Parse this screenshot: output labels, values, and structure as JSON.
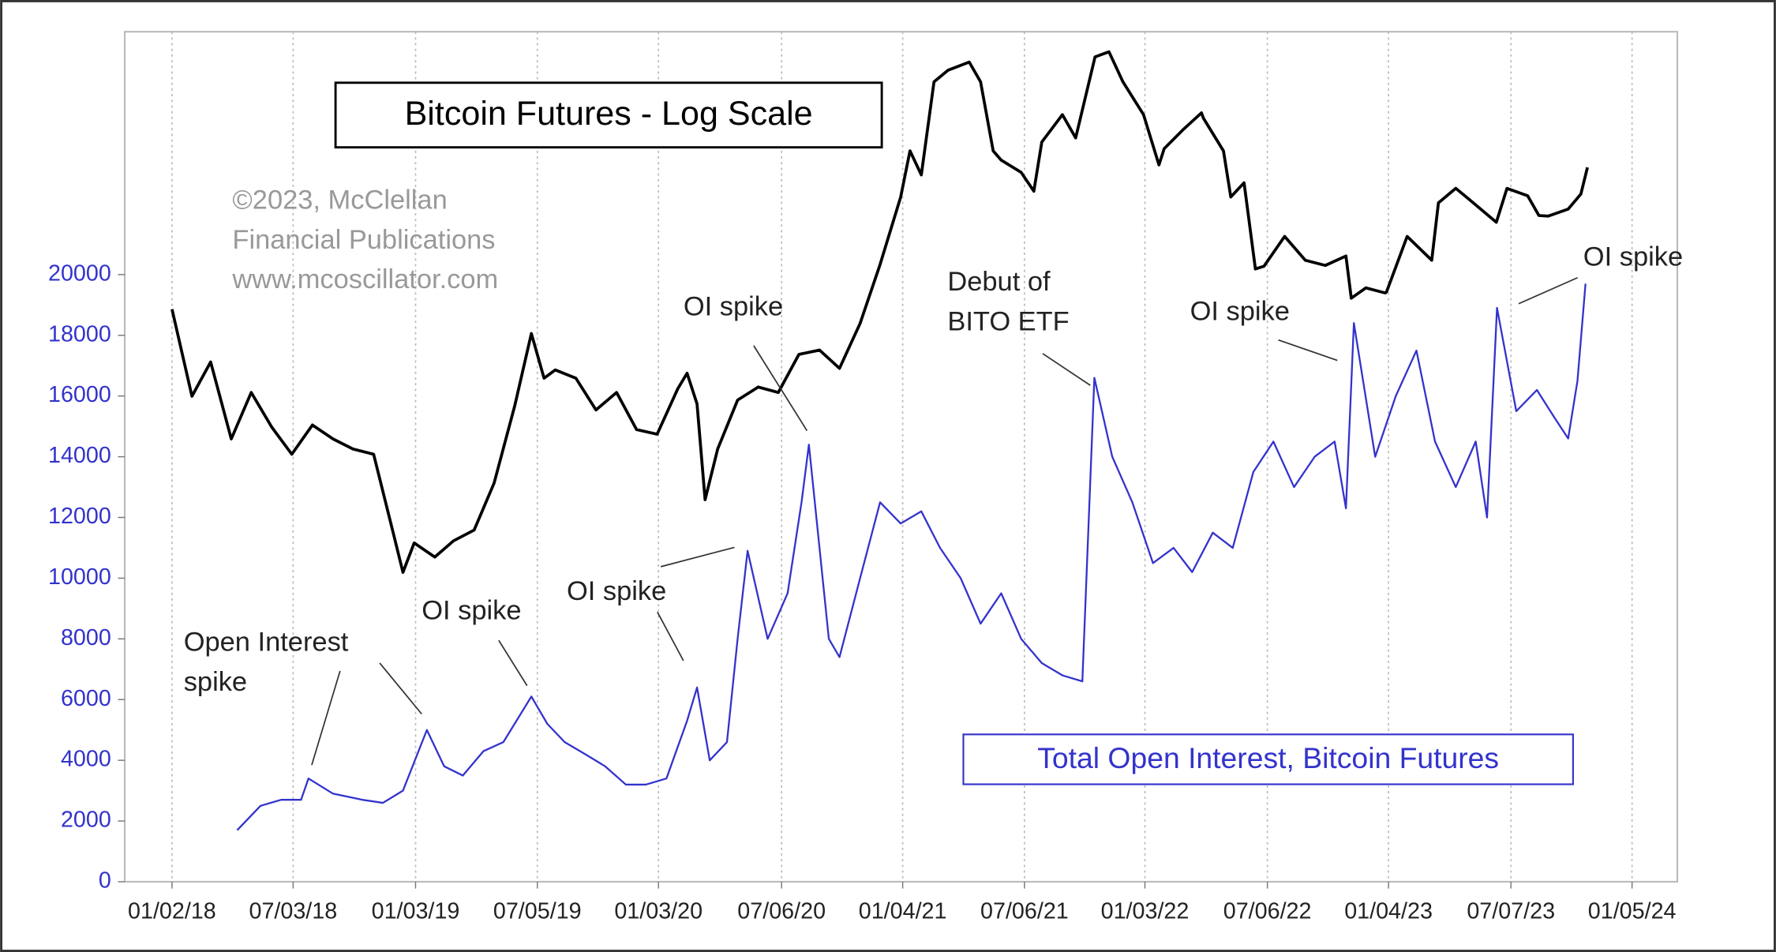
{
  "chart_data": {
    "type": "line",
    "title": "Bitcoin Futures - Log Scale",
    "credit": [
      "©2023, McClellan",
      "Financial Publications",
      "www.mcoscillator.com"
    ],
    "annotations": [
      [
        "Open Interest",
        "spike"
      ],
      [
        "OI spike"
      ],
      [
        "OI spike"
      ],
      [
        "OI spike"
      ],
      [
        "Debut of",
        "BITO ETF"
      ],
      [
        "OI spike"
      ],
      [
        "OI spike"
      ]
    ],
    "xlim": [
      "10/23/17",
      "03/13/24"
    ],
    "xticks": [
      "01/02/18",
      "07/03/18",
      "01/03/19",
      "07/05/19",
      "01/03/20",
      "07/06/20",
      "01/04/21",
      "07/06/21",
      "01/03/22",
      "07/06/22",
      "01/04/23",
      "07/07/23",
      "01/05/24"
    ],
    "ylim": [
      0,
      28000
    ],
    "yticks": [
      0,
      2000,
      4000,
      6000,
      8000,
      10000,
      12000,
      14000,
      16000,
      18000,
      20000
    ],
    "y2lim": [
      520,
      76500
    ],
    "y2scale": "log",
    "grid": "x",
    "legend": "lower right",
    "series": [
      {
        "color": "#000000",
        "axis": "y2",
        "x": [
          "01/02/18",
          "02/01/18",
          "03/01/18",
          "04/01/18",
          "05/01/18",
          "06/01/18",
          "07/01/18",
          "08/01/18",
          "09/01/18",
          "10/01/18",
          "11/01/18",
          "12/01/18",
          "12/15/18",
          "01/01/19",
          "02/01/19",
          "03/01/19",
          "04/01/19",
          "05/01/19",
          "06/01/19",
          "06/26/19",
          "07/15/19",
          "08/01/19",
          "09/01/19",
          "10/01/19",
          "11/01/19",
          "12/01/19",
          "01/01/20",
          "02/01/20",
          "02/15/20",
          "03/01/20",
          "03/13/20",
          "04/01/20",
          "05/01/20",
          "06/01/20",
          "07/01/20",
          "08/01/20",
          "09/01/20",
          "10/01/20",
          "11/01/20",
          "12/01/20",
          "01/01/21",
          "01/15/21",
          "02/01/21",
          "02/20/21",
          "03/13/21",
          "04/14/21",
          "05/01/21",
          "05/20/21",
          "06/01/21",
          "07/01/21",
          "07/20/21",
          "08/01/21",
          "09/01/21",
          "09/21/21",
          "10/20/21",
          "11/10/21",
          "12/01/21",
          "01/01/22",
          "01/24/22",
          "02/01/22",
          "03/01/22",
          "03/29/22",
          "04/01/22",
          "05/01/22",
          "05/12/22",
          "06/01/22",
          "06/18/22",
          "07/01/22",
          "08/01/22",
          "09/01/22",
          "10/01/22",
          "11/01/22",
          "11/09/22",
          "12/01/22",
          "12/30/22",
          "01/01/23",
          "02/01/23",
          "03/10/23",
          "03/20/23",
          "04/15/23",
          "05/01/23",
          "06/15/23",
          "07/01/23",
          "08/01/23",
          "08/18/23",
          "09/01/23",
          "10/01/23",
          "10/20/23",
          "10/30/23"
        ],
        "values": [
          15000,
          9000,
          11000,
          7000,
          9200,
          7500,
          6400,
          7600,
          7000,
          6600,
          6400,
          4000,
          3200,
          3800,
          3500,
          3850,
          4100,
          5400,
          8500,
          13000,
          10000,
          10500,
          10000,
          8300,
          9200,
          7400,
          7200,
          9400,
          10300,
          8600,
          4900,
          6600,
          8800,
          9500,
          9200,
          11500,
          11800,
          10600,
          13800,
          19500,
          29000,
          38000,
          33000,
          57000,
          61000,
          64000,
          57000,
          38000,
          36000,
          33500,
          30000,
          40000,
          47000,
          41000,
          66000,
          68000,
          57000,
          47000,
          35000,
          38500,
          43000,
          47500,
          46000,
          38000,
          29000,
          31500,
          19000,
          19300,
          23000,
          20000,
          19400,
          20500,
          16000,
          17000,
          16500,
          16600,
          23000,
          20000,
          28000,
          30500,
          29000,
          25000,
          30500,
          29200,
          26000,
          25900,
          27000,
          29500,
          34500
        ]
      },
      {
        "name": "Total Open Interest, Bitcoin Futures",
        "color": "#3333cc",
        "x": [
          "04/10/18",
          "05/15/18",
          "06/15/18",
          "07/15/18",
          "07/26/18",
          "09/01/18",
          "10/15/18",
          "11/15/18",
          "12/15/18",
          "01/20/19",
          "02/15/19",
          "03/15/19",
          "04/15/19",
          "05/15/19",
          "06/26/19",
          "07/20/19",
          "08/15/19",
          "09/15/19",
          "10/15/19",
          "11/15/19",
          "12/15/19",
          "01/15/20",
          "02/15/20",
          "03/01/20",
          "03/20/20",
          "04/15/20",
          "05/01/20",
          "05/16/20",
          "06/15/20",
          "07/15/20",
          "08/05/20",
          "08/16/20",
          "09/15/20",
          "10/01/20",
          "11/01/20",
          "12/01/20",
          "01/01/21",
          "02/01/21",
          "03/01/21",
          "04/01/21",
          "05/01/21",
          "06/01/21",
          "07/01/21",
          "08/01/21",
          "09/01/21",
          "10/01/21",
          "10/19/21",
          "11/15/21",
          "12/15/21",
          "01/15/22",
          "02/15/22",
          "03/15/22",
          "04/15/22",
          "05/15/22",
          "06/15/22",
          "07/15/22",
          "08/15/22",
          "09/15/22",
          "10/15/22",
          "11/01/22",
          "11/13/22",
          "12/15/22",
          "01/15/23",
          "02/15/23",
          "03/15/23",
          "04/15/23",
          "05/15/23",
          "06/01/23",
          "06/16/23",
          "07/15/23",
          "08/15/23",
          "09/10/23",
          "10/01/23",
          "10/15/23",
          "10/27/23"
        ],
        "values": [
          1700,
          2500,
          2700,
          2700,
          3400,
          2900,
          2700,
          2600,
          3000,
          5000,
          3800,
          3500,
          4300,
          4600,
          6100,
          5200,
          4600,
          4200,
          3800,
          3200,
          3200,
          3400,
          5300,
          6400,
          4000,
          4600,
          8000,
          10900,
          8000,
          9500,
          12500,
          14400,
          8000,
          7400,
          10000,
          12500,
          11800,
          12200,
          11000,
          10000,
          8500,
          9500,
          8000,
          7200,
          6800,
          6600,
          16600,
          14000,
          12500,
          10500,
          11000,
          10200,
          11500,
          11000,
          13500,
          14500,
          13000,
          14000,
          14500,
          12300,
          18400,
          14000,
          16000,
          17500,
          14500,
          13000,
          14500,
          12000,
          18900,
          15500,
          16200,
          15300,
          14600,
          16500,
          19700
        ]
      }
    ]
  }
}
